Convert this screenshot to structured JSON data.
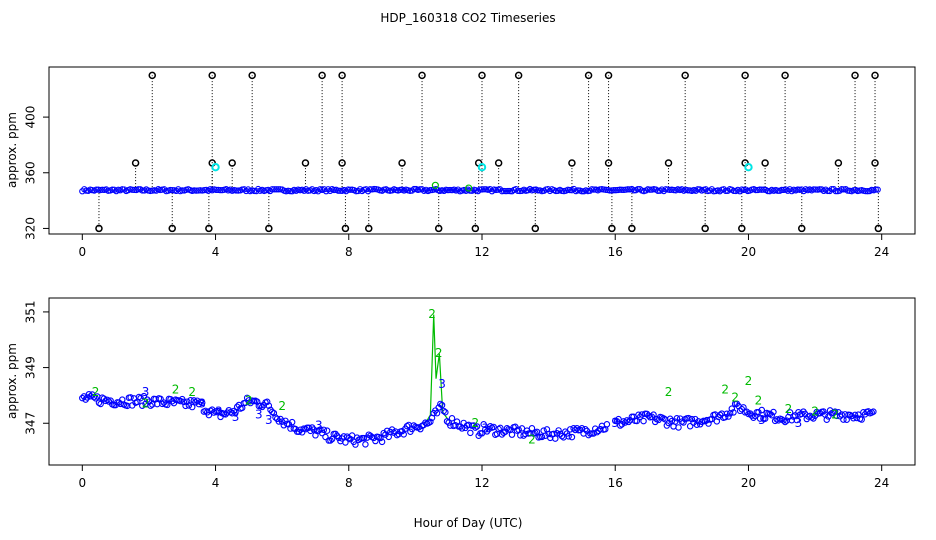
{
  "chart_data": {
    "title": "HDP_160318  CO2 Timeseries",
    "xlabel": "Hour of Day (UTC)",
    "colors": {
      "flag0": "#0000ff",
      "flag2": "#00bb00",
      "flag3": "#0000ff",
      "outlier": "#000000",
      "highlight": "#00e5e5",
      "vline": "#000000"
    },
    "panels": [
      {
        "name": "all-data",
        "type": "scatter",
        "ylabel": "approx. ppm",
        "xlim": [
          -1,
          25
        ],
        "ylim": [
          316,
          436
        ],
        "xticks": [
          0,
          4,
          8,
          12,
          16,
          20,
          24
        ],
        "yticks": [
          320,
          360,
          400
        ],
        "baseline": 347.5,
        "outlier_high": 430,
        "outlier_low": 320,
        "outlier_mid": 367,
        "highlight_points": [
          [
            4.0,
            364
          ],
          [
            12.0,
            364
          ],
          [
            20.0,
            364
          ]
        ],
        "green_points": [
          [
            10.6,
            351
          ],
          [
            11.6,
            349
          ]
        ],
        "vertical_spikes": [
          {
            "x": 2.1,
            "y": 430
          },
          {
            "x": 3.9,
            "y": 430
          },
          {
            "x": 5.1,
            "y": 430
          },
          {
            "x": 7.2,
            "y": 430
          },
          {
            "x": 7.8,
            "y": 430
          },
          {
            "x": 10.2,
            "y": 430
          },
          {
            "x": 12.0,
            "y": 430
          },
          {
            "x": 13.1,
            "y": 430
          },
          {
            "x": 15.2,
            "y": 430
          },
          {
            "x": 15.8,
            "y": 430
          },
          {
            "x": 18.1,
            "y": 430
          },
          {
            "x": 19.9,
            "y": 430
          },
          {
            "x": 21.1,
            "y": 430
          },
          {
            "x": 23.2,
            "y": 430
          },
          {
            "x": 23.8,
            "y": 430
          },
          {
            "x": 0.5,
            "y": 320
          },
          {
            "x": 2.7,
            "y": 320
          },
          {
            "x": 3.8,
            "y": 320
          },
          {
            "x": 5.6,
            "y": 320
          },
          {
            "x": 7.9,
            "y": 320
          },
          {
            "x": 8.6,
            "y": 320
          },
          {
            "x": 10.7,
            "y": 320
          },
          {
            "x": 11.8,
            "y": 320
          },
          {
            "x": 13.6,
            "y": 320
          },
          {
            "x": 15.9,
            "y": 320
          },
          {
            "x": 16.5,
            "y": 320
          },
          {
            "x": 18.7,
            "y": 320
          },
          {
            "x": 19.8,
            "y": 320
          },
          {
            "x": 21.6,
            "y": 320
          },
          {
            "x": 23.9,
            "y": 320
          },
          {
            "x": 1.6,
            "y": 367
          },
          {
            "x": 3.9,
            "y": 367
          },
          {
            "x": 4.5,
            "y": 367
          },
          {
            "x": 6.7,
            "y": 367
          },
          {
            "x": 7.8,
            "y": 367
          },
          {
            "x": 9.6,
            "y": 367
          },
          {
            "x": 11.9,
            "y": 367
          },
          {
            "x": 12.5,
            "y": 367
          },
          {
            "x": 14.7,
            "y": 367
          },
          {
            "x": 15.8,
            "y": 367
          },
          {
            "x": 17.6,
            "y": 367
          },
          {
            "x": 19.9,
            "y": 367
          },
          {
            "x": 20.5,
            "y": 367
          },
          {
            "x": 22.7,
            "y": 367
          },
          {
            "x": 23.8,
            "y": 367
          }
        ]
      },
      {
        "name": "filtered-data",
        "type": "scatter",
        "ylabel": "approx. ppm",
        "xlim": [
          -1,
          25
        ],
        "ylim": [
          345.5,
          351.5
        ],
        "xticks": [
          0,
          4,
          8,
          12,
          16,
          20,
          24
        ],
        "yticks": [
          347,
          349,
          351
        ],
        "trend": [
          [
            0.0,
            347.9
          ],
          [
            1.0,
            347.8
          ],
          [
            2.0,
            347.8
          ],
          [
            3.0,
            347.7
          ],
          [
            3.5,
            347.7
          ],
          [
            4.0,
            347.3
          ],
          [
            4.5,
            347.4
          ],
          [
            5.0,
            347.8
          ],
          [
            5.5,
            347.7
          ],
          [
            6.0,
            347.1
          ],
          [
            6.5,
            346.8
          ],
          [
            7.0,
            346.7
          ],
          [
            7.5,
            346.5
          ],
          [
            8.0,
            346.4
          ],
          [
            8.5,
            346.4
          ],
          [
            9.0,
            346.5
          ],
          [
            9.5,
            346.7
          ],
          [
            10.0,
            346.9
          ],
          [
            10.4,
            347.0
          ],
          [
            10.6,
            347.3
          ],
          [
            10.8,
            347.6
          ],
          [
            11.0,
            347.1
          ],
          [
            11.5,
            346.9
          ],
          [
            11.9,
            346.7
          ],
          [
            12.0,
            346.8
          ],
          [
            13.0,
            346.7
          ],
          [
            14.0,
            346.6
          ],
          [
            15.0,
            346.7
          ],
          [
            15.8,
            346.9
          ],
          [
            16.0,
            347.0
          ],
          [
            17.0,
            347.2
          ],
          [
            18.0,
            347.0
          ],
          [
            19.0,
            347.2
          ],
          [
            19.4,
            347.4
          ],
          [
            19.7,
            347.6
          ],
          [
            20.0,
            347.4
          ],
          [
            20.5,
            347.3
          ],
          [
            21.0,
            347.2
          ],
          [
            22.0,
            347.3
          ],
          [
            23.0,
            347.3
          ],
          [
            23.8,
            347.3
          ]
        ],
        "flag2_points": [
          [
            0.4,
            348.1
          ],
          [
            1.9,
            347.7
          ],
          [
            2.8,
            348.2
          ],
          [
            3.3,
            348.1
          ],
          [
            5.0,
            347.8
          ],
          [
            6.0,
            347.6
          ],
          [
            10.5,
            350.9
          ],
          [
            10.7,
            349.5
          ],
          [
            11.8,
            347.0
          ],
          [
            13.5,
            346.4
          ],
          [
            17.6,
            348.1
          ],
          [
            19.3,
            348.2
          ],
          [
            19.6,
            347.9
          ],
          [
            20.0,
            348.5
          ],
          [
            20.3,
            347.8
          ],
          [
            21.2,
            347.5
          ],
          [
            22.0,
            347.4
          ],
          [
            22.6,
            347.3
          ]
        ],
        "flag3_points": [
          [
            1.9,
            348.1
          ],
          [
            3.6,
            347.7
          ],
          [
            4.1,
            347.4
          ],
          [
            4.6,
            347.2
          ],
          [
            5.3,
            347.3
          ],
          [
            5.6,
            347.1
          ],
          [
            7.1,
            346.9
          ],
          [
            10.8,
            348.4
          ],
          [
            12.1,
            346.8
          ],
          [
            16.0,
            347.0
          ],
          [
            20.4,
            347.1
          ],
          [
            21.5,
            347.0
          ]
        ],
        "green_line": [
          [
            10.3,
            347.0
          ],
          [
            10.45,
            347.3
          ],
          [
            10.55,
            350.9
          ],
          [
            10.62,
            348.6
          ],
          [
            10.72,
            349.5
          ],
          [
            10.82,
            347.4
          ],
          [
            11.0,
            347.1
          ]
        ]
      }
    ]
  }
}
